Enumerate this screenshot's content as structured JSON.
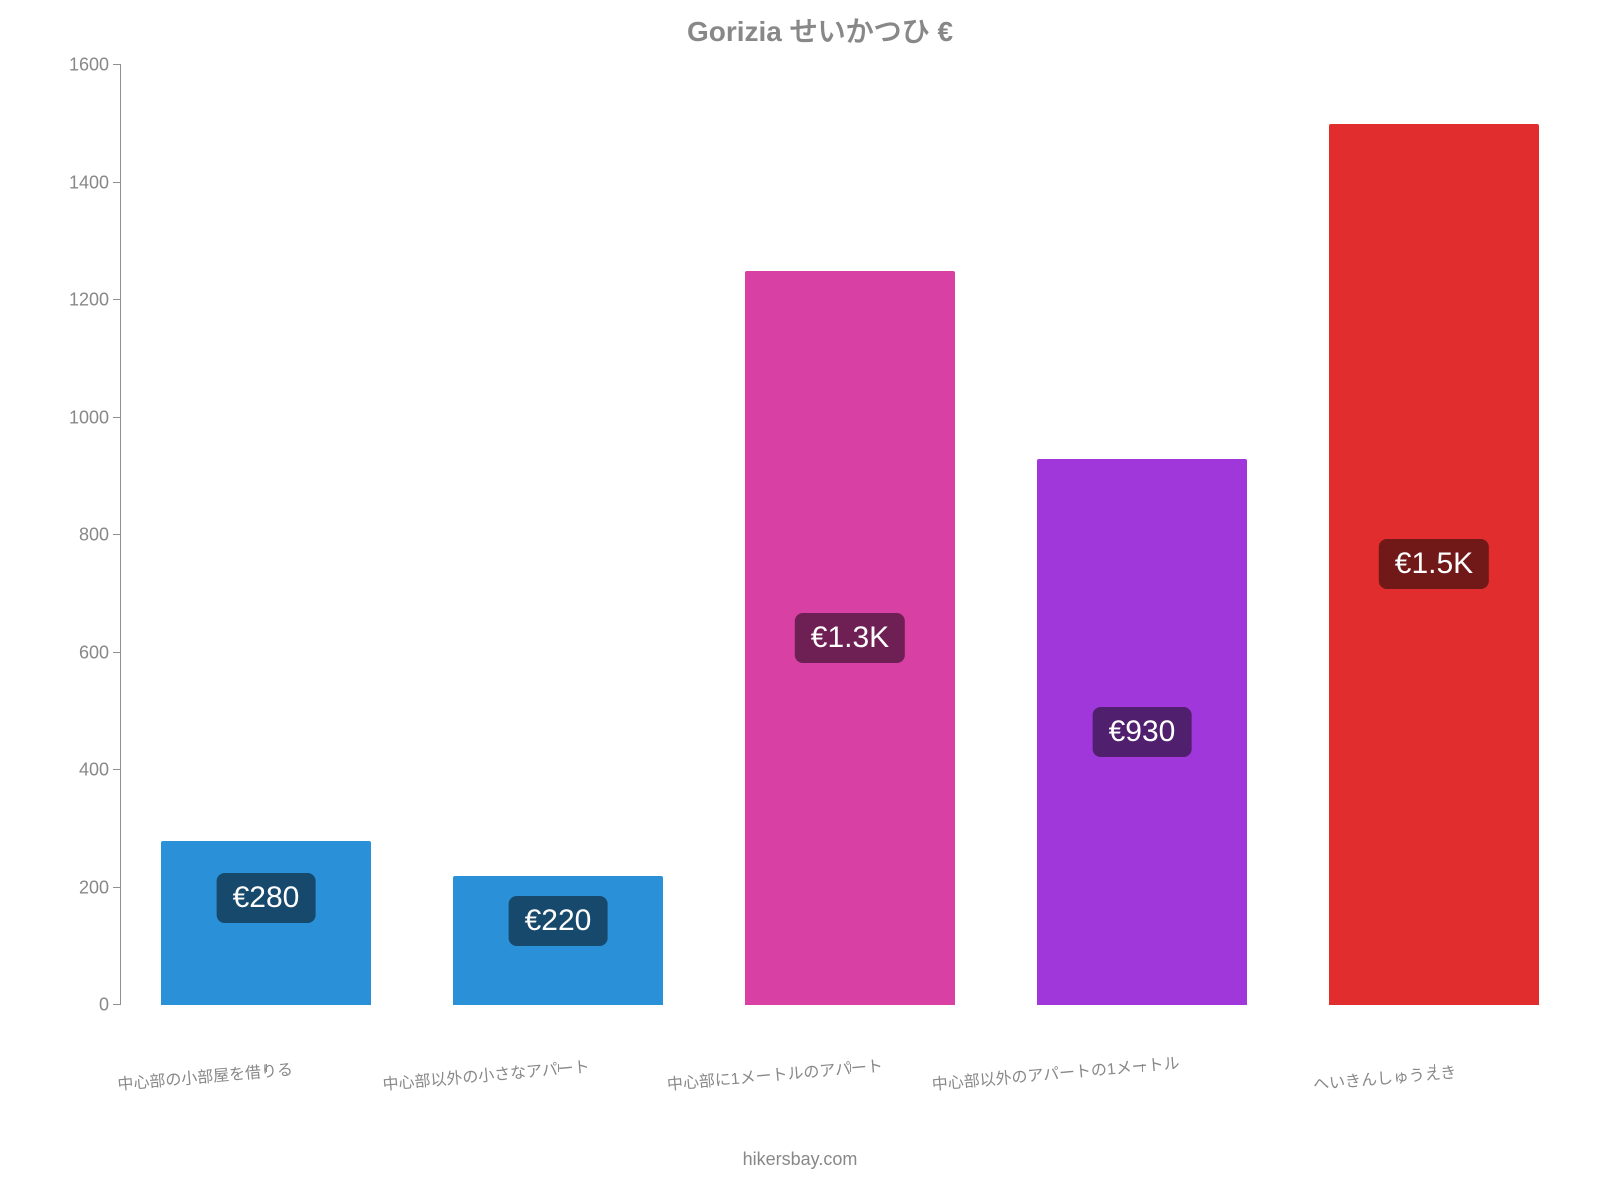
{
  "chart": {
    "type": "bar",
    "title": "Gorizia せいかつひ €",
    "title_color": "#888888",
    "title_fontsize": 28,
    "background_color": "#ffffff",
    "axis_color": "#909090",
    "label_color": "#888888",
    "label_fontsize": 18,
    "x_label_fontsize": 16,
    "x_label_rotation_deg": -5,
    "ylim": [
      0,
      1600
    ],
    "ytick_step": 200,
    "y_ticks": [
      0,
      200,
      400,
      600,
      800,
      1000,
      1200,
      1400,
      1600
    ],
    "bar_width_ratio": 0.72,
    "categories": [
      "中心部の小部屋を借りる",
      "中心部以外の小さなアパート",
      "中心部に1メートルのアパート",
      "中心部以外のアパートの1メートル",
      "へいきんしゅうえき"
    ],
    "values": [
      280,
      220,
      1250,
      930,
      1500
    ],
    "value_labels": [
      "€280",
      "€220",
      "€1.3K",
      "€930",
      "€1.5K"
    ],
    "bar_colors": [
      "#2a91d8",
      "#2a91d8",
      "#d940a4",
      "#9f37db",
      "#e12d2d"
    ],
    "badge_colors": [
      "#17496c",
      "#17496c",
      "#6e2054",
      "#50206e",
      "#711818"
    ],
    "badge_text_color": "#ffffff",
    "badge_fontsize": 30,
    "source_text": "hikersbay.com",
    "source_color": "#888888",
    "source_fontsize": 18
  }
}
